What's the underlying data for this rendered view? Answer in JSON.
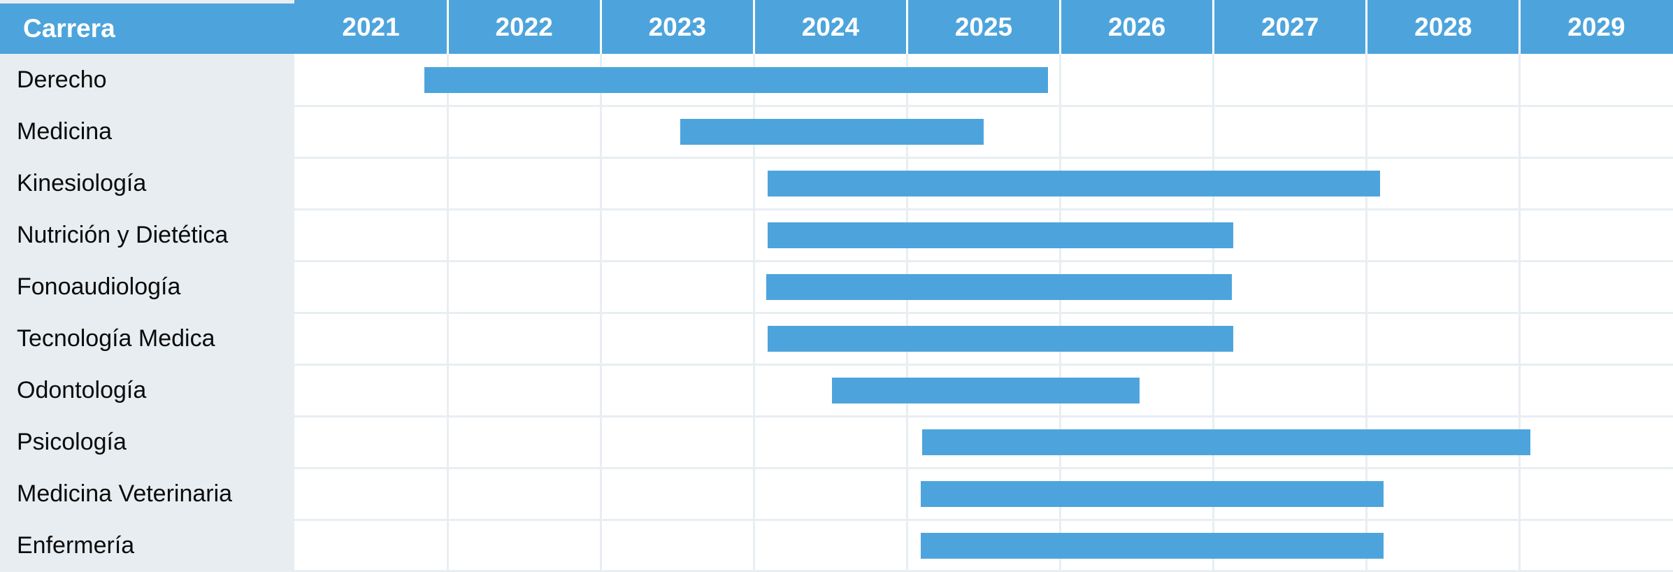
{
  "chart_data": {
    "type": "bar",
    "subtype": "gantt",
    "title": "",
    "header_label": "Carrera",
    "year_columns": [
      "2021",
      "2022",
      "2023",
      "2024",
      "2025",
      "2026",
      "2027",
      "2028",
      "2029"
    ],
    "axis": {
      "min": 2021,
      "max": 2030,
      "grid": true
    },
    "rows": [
      {
        "label": "Derecho",
        "start": 2021.85,
        "end": 2025.92
      },
      {
        "label": "Medicina",
        "start": 2023.52,
        "end": 2025.5
      },
      {
        "label": "Kinesiología",
        "start": 2024.09,
        "end": 2028.09
      },
      {
        "label": "Nutrición y Dietética",
        "start": 2024.09,
        "end": 2027.13
      },
      {
        "label": "Fonoaudiología",
        "start": 2024.08,
        "end": 2027.12
      },
      {
        "label": "Tecnología Medica",
        "start": 2024.09,
        "end": 2027.13
      },
      {
        "label": "Odontología",
        "start": 2024.51,
        "end": 2026.52
      },
      {
        "label": "Psicología",
        "start": 2025.1,
        "end": 2029.07
      },
      {
        "label": "Medicina Veterinaria",
        "start": 2025.09,
        "end": 2028.11
      },
      {
        "label": "Enfermería",
        "start": 2025.09,
        "end": 2028.11
      }
    ]
  },
  "colors": {
    "header_bg": "#4DA4DC",
    "bar": "#4DA4DC",
    "label_column_bg": "#E7EDF1",
    "grid_line": "#E8EEF2",
    "header_separator": "#FFFFFF",
    "top_strip": "#E8EEF2",
    "header_text": "#FFFFFF",
    "label_text": "#0B0B0B"
  }
}
